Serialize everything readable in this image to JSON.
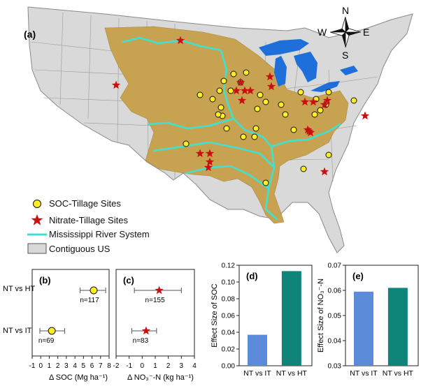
{
  "map": {
    "panel_label": "(a)",
    "compass": {
      "n": "N",
      "s": "S",
      "e": "E",
      "w": "W"
    },
    "legend": [
      {
        "symbol": "soc-circle",
        "label": "SOC-Tillage Sites"
      },
      {
        "symbol": "nitrate-star",
        "label": "Nitrate-Tillage Sites"
      },
      {
        "symbol": "river-line",
        "label": "Mississippi River System"
      },
      {
        "symbol": "us-box",
        "label": "Contiguous US"
      }
    ],
    "colors": {
      "land": "#d9d9d9",
      "basin": "#c7a14c",
      "river": "#40e0d0",
      "lakes": "#1e6fd9",
      "soc": "#ffee22",
      "nitrate": "#c81010"
    }
  },
  "panel_b": {
    "label": "(b)",
    "xlabel": "Δ SOC (Mg ha⁻¹)",
    "rows": [
      {
        "name": "NT vs HT",
        "label": "n=117",
        "mean": 6.2,
        "lo": 4.6,
        "hi": 7.6
      },
      {
        "name": "NT vs IT",
        "label": "n=69",
        "mean": 1.3,
        "lo": -0.1,
        "hi": 2.8
      }
    ],
    "xlim": [
      -1,
      8
    ],
    "ticks": [
      "-1",
      "0",
      "1",
      "2",
      "3",
      "4",
      "5",
      "6",
      "7",
      "8"
    ]
  },
  "panel_c": {
    "label": "(c)",
    "xlabel": "Δ NO₃⁻-N (kg ha⁻¹)",
    "rows": [
      {
        "name": "NT vs HT",
        "label": "n=155",
        "mean": 1.3,
        "lo": -0.6,
        "hi": 3.0
      },
      {
        "name": "NT vs IT",
        "label": "n=83",
        "mean": 0.3,
        "lo": -0.8,
        "hi": 1.1
      }
    ],
    "xlim": [
      -2,
      4
    ],
    "ticks": [
      "-2",
      "-1",
      "0",
      "1",
      "2",
      "3",
      "4"
    ]
  },
  "chart_data": [
    {
      "type": "bar",
      "panel": "(d)",
      "categories": [
        "NT vs IT",
        "NT vs HT"
      ],
      "values": [
        0.037,
        0.113
      ],
      "colors": [
        "#5b8bd9",
        "#0f8479"
      ],
      "ylabel": "Effect Size of SOC",
      "ylim": [
        0.0,
        0.12
      ],
      "yticks": [
        "0.00",
        "0.02",
        "0.04",
        "0.06",
        "0.08",
        "0.10",
        "0.12"
      ]
    },
    {
      "type": "bar",
      "panel": "(e)",
      "categories": [
        "NT vs IT",
        "NT vs HT"
      ],
      "values": [
        0.0595,
        0.061
      ],
      "colors": [
        "#5b8bd9",
        "#0f8479"
      ],
      "ylabel": "Effect Size of NO₃⁻-N",
      "ylim": [
        0.03,
        0.07
      ],
      "yticks": [
        "0.03",
        "0.04",
        "0.05",
        "0.06",
        "0.07"
      ]
    }
  ]
}
